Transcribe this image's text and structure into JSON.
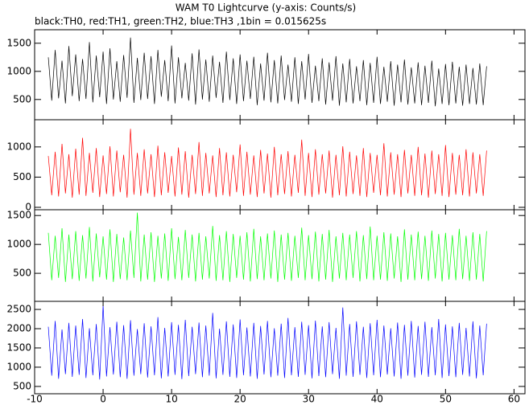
{
  "chart_data": {
    "type": "line",
    "title": "WAM T0 Lightcurve (y-axis: Counts/s)",
    "subtitle": "black:TH0, red:TH1, green:TH2, blue:TH3 ,1bin = 0.015625s",
    "xlim": [
      -10,
      61.6
    ],
    "xticks": [
      -10,
      0,
      10,
      20,
      30,
      40,
      50,
      60
    ],
    "x": [
      -8,
      -7.5,
      -7,
      -6.5,
      -6,
      -5.5,
      -5,
      -4.5,
      -4,
      -3.5,
      -3,
      -2.5,
      -2,
      -1.5,
      -1,
      -0.5,
      0,
      0.5,
      1,
      1.5,
      2,
      2.5,
      3,
      3.5,
      4,
      4.5,
      5,
      5.5,
      6,
      6.5,
      7,
      7.5,
      8,
      8.5,
      9,
      9.5,
      10,
      10.5,
      11,
      11.5,
      12,
      12.5,
      13,
      13.5,
      14,
      14.5,
      15,
      15.5,
      16,
      16.5,
      17,
      17.5,
      18,
      18.5,
      19,
      19.5,
      20,
      20.5,
      21,
      21.5,
      22,
      22.5,
      23,
      23.5,
      24,
      24.5,
      25,
      25.5,
      26,
      26.5,
      27,
      27.5,
      28,
      28.5,
      29,
      29.5,
      30,
      30.5,
      31,
      31.5,
      32,
      32.5,
      33,
      33.5,
      34,
      34.5,
      35,
      35.5,
      36,
      36.5,
      37,
      37.5,
      38,
      38.5,
      39,
      39.5,
      40,
      40.5,
      41,
      41.5,
      42,
      42.5,
      43,
      43.5,
      44,
      44.5,
      45,
      45.5,
      46,
      46.5,
      47,
      47.5,
      48,
      48.5,
      49,
      49.5,
      50,
      50.5,
      51,
      51.5,
      52,
      52.5,
      53,
      53.5,
      54,
      54.5,
      55,
      55.5,
      56
    ],
    "series": [
      {
        "color": "#000000",
        "ylim": [
          140,
          1740
        ],
        "yticks": [
          500,
          1000,
          1500
        ],
        "values": [
          1250,
          480,
          1380,
          520,
          1190,
          430,
          1450,
          560,
          1300,
          470,
          1220,
          510,
          1520,
          450,
          1280,
          540,
          1350,
          420,
          1410,
          500,
          1180,
          460,
          1290,
          530,
          1600,
          440,
          1240,
          490,
          1330,
          510,
          1270,
          420,
          1380,
          550,
          1200,
          470,
          1460,
          430,
          1250,
          520,
          1150,
          480,
          1320,
          410,
          1390,
          500,
          1210,
          460,
          1280,
          530,
          1170,
          440,
          1350,
          490,
          1230,
          420,
          1300,
          470,
          1190,
          510,
          1260,
          400,
          1140,
          480,
          1330,
          450,
          1200,
          430,
          1280,
          490,
          1120,
          460,
          1250,
          420,
          1180,
          500,
          1310,
          440,
          1100,
          470,
          1230,
          410,
          1160,
          480,
          1270,
          390,
          1140,
          450,
          1220,
          430,
          1090,
          470,
          1200,
          400,
          1150,
          440,
          1260,
          420,
          1080,
          460,
          1180,
          390,
          1120,
          450,
          1210,
          410,
          1070,
          430,
          1160,
          400,
          1100,
          440,
          1190,
          380,
          1050,
          420,
          1130,
          400,
          1170,
          430,
          1080,
          390,
          1120,
          420,
          1060,
          410,
          1140,
          400,
          1090
        ]
      },
      {
        "color": "#ff0000",
        "ylim": [
          -40,
          1450
        ],
        "yticks": [
          0,
          500,
          1000
        ],
        "values": [
          850,
          200,
          920,
          180,
          1050,
          230,
          880,
          160,
          970,
          210,
          1150,
          190,
          900,
          240,
          980,
          170,
          860,
          220,
          1010,
          180,
          940,
          250,
          870,
          160,
          1300,
          210,
          900,
          190,
          960,
          230,
          880,
          170,
          1020,
          200,
          910,
          240,
          850,
          180,
          990,
          210,
          930,
          160,
          870,
          220,
          1080,
          190,
          900,
          230,
          860,
          170,
          980,
          200,
          910,
          180,
          870,
          250,
          1040,
          190,
          920,
          210,
          860,
          170,
          950,
          230,
          890,
          160,
          1000,
          200,
          880,
          220,
          930,
          180,
          870,
          240,
          1120,
          190,
          900,
          170,
          960,
          210,
          880,
          230,
          940,
          160,
          870,
          200,
          1010,
          180,
          920,
          220,
          860,
          190,
          980,
          170,
          900,
          240,
          870,
          200,
          1060,
          180,
          910,
          210,
          880,
          170,
          950,
          230,
          870,
          190,
          1000,
          200,
          890,
          160,
          940,
          220,
          880,
          190,
          1030,
          170,
          900,
          210,
          870,
          200,
          960,
          180,
          910,
          230,
          880,
          190,
          940
        ]
      },
      {
        "color": "#00ff00",
        "ylim": [
          15,
          1600
        ],
        "yticks": [
          500,
          1000,
          1500
        ],
        "values": [
          1200,
          380,
          1150,
          420,
          1280,
          350,
          1170,
          400,
          1230,
          370,
          1160,
          410,
          1300,
          360,
          1190,
          430,
          1140,
          390,
          1260,
          350,
          1180,
          400,
          1120,
          380,
          1240,
          420,
          1550,
          360,
          1170,
          390,
          1210,
          350,
          1150,
          410,
          1190,
          370,
          1280,
          400,
          1130,
          380,
          1250,
          420,
          1170,
          360,
          1200,
          390,
          1140,
          410,
          1320,
          370,
          1160,
          380,
          1230,
          350,
          1180,
          420,
          1150,
          390,
          1210,
          360,
          1270,
          400,
          1140,
          380,
          1190,
          410,
          1240,
          350,
          1170,
          390,
          1200,
          370,
          1150,
          420,
          1290,
          380,
          1160,
          400,
          1220,
          360,
          1180,
          390,
          1250,
          350,
          1140,
          410,
          1200,
          380,
          1170,
          420,
          1230,
          360,
          1160,
          400,
          1310,
          380,
          1150,
          390,
          1210,
          370,
          1190,
          410,
          1140,
          350,
          1260,
          390,
          1170,
          380,
          1220,
          400,
          1150,
          370,
          1240,
          410,
          1180,
          360,
          1200,
          390,
          1160,
          380,
          1270,
          400,
          1150,
          370,
          1210,
          390,
          1180,
          360,
          1230
        ]
      },
      {
        "color": "#0000ff",
        "ylim": [
          310,
          2710
        ],
        "yticks": [
          500,
          1000,
          1500,
          2000,
          2500
        ],
        "values": [
          2050,
          780,
          2200,
          700,
          1980,
          820,
          2150,
          750,
          2080,
          800,
          2250,
          720,
          2010,
          790,
          2120,
          680,
          2600,
          760,
          2040,
          810,
          2180,
          740,
          2090,
          700,
          2220,
          780,
          1990,
          820,
          2140,
          730,
          2060,
          790,
          2300,
          710,
          2020,
          760,
          2170,
          800,
          2100,
          690,
          2230,
          770,
          2050,
          820,
          2160,
          740,
          2080,
          780,
          2410,
          710,
          2000,
          800,
          2190,
          750,
          2110,
          720,
          2240,
          790,
          2030,
          760,
          2150,
          700,
          2070,
          810,
          2200,
          740,
          2010,
          780,
          2130,
          720,
          2280,
          790,
          2040,
          750,
          2180,
          800,
          2090,
          710,
          2210,
          770,
          2060,
          740,
          2170,
          820,
          2020,
          700,
          2550,
          780,
          2120,
          750,
          2190,
          800,
          2050,
          720,
          2140,
          790,
          2230,
          740,
          2080,
          810,
          2010,
          760,
          2160,
          700,
          2100,
          780,
          2200,
          730,
          2070,
          800,
          2180,
          750,
          2040,
          790,
          2250,
          720,
          2110,
          770,
          2060,
          740,
          2150,
          800,
          2020,
          760,
          2190,
          710,
          2080,
          790,
          2130
        ]
      }
    ]
  }
}
